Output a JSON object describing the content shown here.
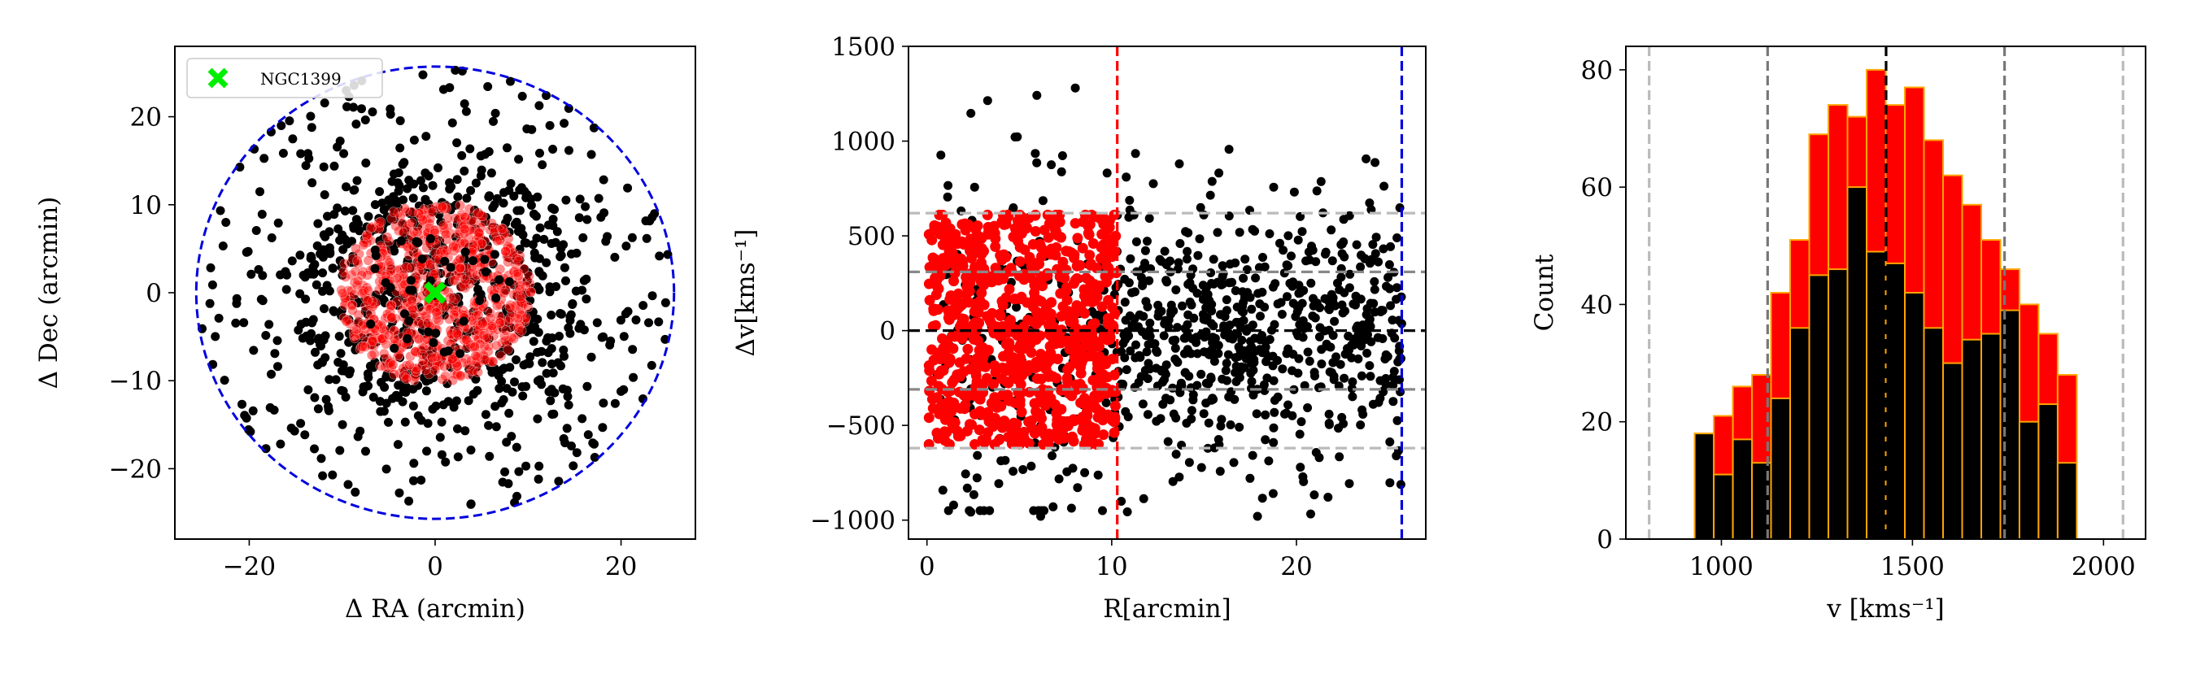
{
  "chart_data": [
    {
      "type": "scatter",
      "xlabel": "Δ RA (arcmin)",
      "ylabel": "Δ Dec (arcmin)",
      "xlim": [
        -28,
        28
      ],
      "ylim": [
        -28,
        28
      ],
      "xticks": [
        -20,
        0,
        20
      ],
      "xtick_labels": [
        "−20",
        "0",
        "20"
      ],
      "yticks": [
        -20,
        -10,
        0,
        10,
        20
      ],
      "ytick_labels": [
        "−20",
        "−10",
        "0",
        "10",
        "20"
      ],
      "legend": {
        "placement": "top-left",
        "entries": [
          {
            "label": "NGC1399",
            "marker": "x",
            "color": "#00ee00"
          }
        ]
      },
      "center": {
        "x": 0,
        "y": 0,
        "color": "#00ee00"
      },
      "circles": [
        {
          "radius": 25.7,
          "style": "dashed",
          "color": "#0000dd"
        }
      ],
      "inner_region_radius": 10.3,
      "series": [
        {
          "color": "#000000",
          "count": 850
        },
        {
          "color": "#ff0000",
          "count": 750
        }
      ]
    },
    {
      "type": "scatter",
      "xlabel": "R[arcmin]",
      "ylabel": "Δv[kms⁻¹]",
      "xlim": [
        -1,
        27
      ],
      "ylim": [
        -1100,
        1500
      ],
      "xticks": [
        0,
        10,
        20
      ],
      "xtick_labels": [
        "0",
        "10",
        "20"
      ],
      "yticks": [
        -1000,
        -500,
        0,
        500,
        1000,
        1500
      ],
      "ytick_labels": [
        "−1000",
        "−500",
        "0",
        "500",
        "1000",
        "1500"
      ],
      "vlines": [
        {
          "x": 10.3,
          "color": "#ff0000",
          "style": "dashed"
        },
        {
          "x": 25.7,
          "color": "#0000dd",
          "style": "dashed"
        }
      ],
      "hlines": [
        {
          "y": 0,
          "color": "#000000",
          "style": "dashed"
        },
        {
          "y": 310,
          "color": "#888888",
          "style": "dashed"
        },
        {
          "y": -310,
          "color": "#888888",
          "style": "dashed"
        },
        {
          "y": 620,
          "color": "#bbbbbb",
          "style": "dashed"
        },
        {
          "y": -620,
          "color": "#bbbbbb",
          "style": "dashed"
        }
      ],
      "series": [
        {
          "color": "#ff0000",
          "r_range": [
            0,
            10.3
          ],
          "count": 800
        },
        {
          "color": "#000000",
          "r_range": [
            0,
            25.7
          ],
          "count": 800
        }
      ]
    },
    {
      "type": "bar",
      "xlabel": "v [kms⁻¹]",
      "ylabel": "Count",
      "xlim": [
        750,
        2110
      ],
      "ylim": [
        0,
        84
      ],
      "xticks": [
        1000,
        1500,
        2000
      ],
      "xtick_labels": [
        "1000",
        "1500",
        "2000"
      ],
      "yticks": [
        0,
        20,
        40,
        60,
        80
      ],
      "ytick_labels": [
        "0",
        "20",
        "40",
        "60",
        "80"
      ],
      "bin_edges": [
        930,
        980,
        1030,
        1080,
        1130,
        1180,
        1230,
        1280,
        1330,
        1380,
        1430,
        1480,
        1530,
        1580,
        1630,
        1680,
        1730,
        1780,
        1830,
        1880,
        1930
      ],
      "bar_edge_color": "#ffa500",
      "series": [
        {
          "color": "#ff0000",
          "values": [
            18,
            21,
            26,
            28,
            42,
            51,
            69,
            74,
            72,
            80,
            74,
            77,
            68,
            62,
            57,
            51,
            46,
            40,
            35,
            28
          ]
        },
        {
          "color": "#000000",
          "values": [
            18,
            11,
            17,
            13,
            24,
            36,
            45,
            46,
            60,
            49,
            47,
            42,
            36,
            30,
            34,
            35,
            39,
            20,
            23,
            13
          ]
        }
      ],
      "vlines": [
        {
          "x": 1431,
          "color": "#000000",
          "style": "dashed"
        },
        {
          "x": 1121,
          "color": "#777777",
          "style": "dashed"
        },
        {
          "x": 1741,
          "color": "#777777",
          "style": "dashed"
        },
        {
          "x": 811,
          "color": "#bbbbbb",
          "style": "dashed"
        },
        {
          "x": 2051,
          "color": "#bbbbbb",
          "style": "dashed"
        }
      ]
    }
  ]
}
